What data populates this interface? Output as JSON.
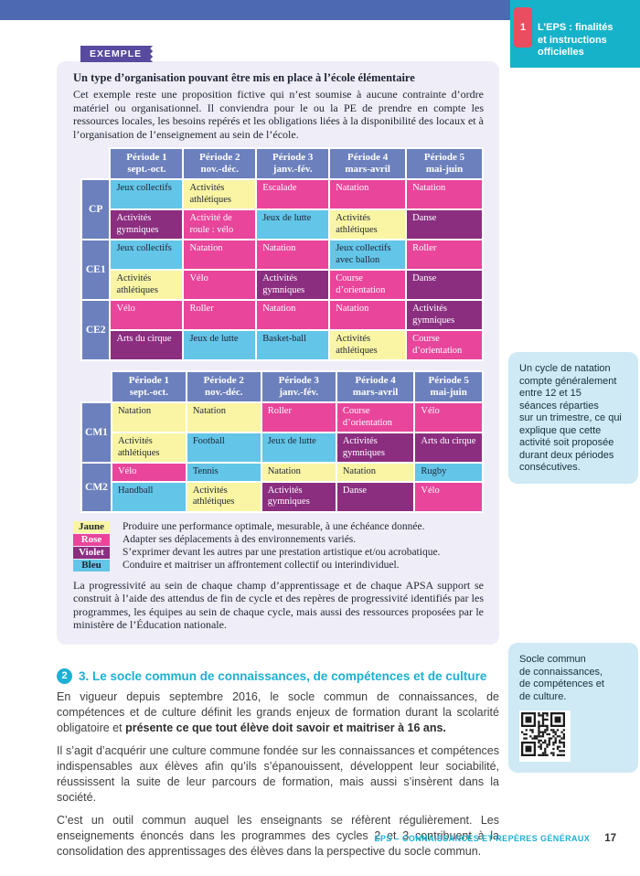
{
  "chapter": {
    "number": "1",
    "title": "L’EPS : finalités\net instructions\nofficielles"
  },
  "example": {
    "badge": "EXEMPLE",
    "heading": "Un type d’organisation pouvant être mis en place à l’école élémentaire",
    "intro": "Cet exemple reste une proposition fictive qui n’est soumise à aucune contrainte d’ordre matériel ou organisationnel. Il conviendra pour le ou la PE de prendre en compte les ressources locales, les besoins repérés et les obligations liées à la disponibilité des locaux et à l’organisation de l’enseignement au sein de l’école.",
    "period_headers": [
      {
        "name": "Période 1",
        "months": "sept.-oct."
      },
      {
        "name": "Période 2",
        "months": "nov.-déc."
      },
      {
        "name": "Période 3",
        "months": "janv.-fév."
      },
      {
        "name": "Période 4",
        "months": "mars-avril"
      },
      {
        "name": "Période 5",
        "months": "mai-juin"
      }
    ],
    "tables": [
      {
        "groups": [
          {
            "label": "CP",
            "rows": [
              [
                {
                  "t": "Jeux collectifs",
                  "c": "bleu"
                },
                {
                  "t": "Activités athlétiques",
                  "c": "jaune"
                },
                {
                  "t": "Escalade",
                  "c": "rose"
                },
                {
                  "t": "Natation",
                  "c": "rose"
                },
                {
                  "t": "Natation",
                  "c": "rose"
                }
              ],
              [
                {
                  "t": "Activités gymniques",
                  "c": "violet"
                },
                {
                  "t": "Activité de roule : vélo",
                  "c": "rose"
                },
                {
                  "t": "Jeux de lutte",
                  "c": "bleu"
                },
                {
                  "t": "Activités athlétiques",
                  "c": "jaune"
                },
                {
                  "t": "Danse",
                  "c": "violet"
                }
              ]
            ]
          },
          {
            "label": "CE1",
            "rows": [
              [
                {
                  "t": "Jeux collectifs",
                  "c": "bleu"
                },
                {
                  "t": "Natation",
                  "c": "rose"
                },
                {
                  "t": "Natation",
                  "c": "rose"
                },
                {
                  "t": "Jeux collectifs avec ballon",
                  "c": "bleu"
                },
                {
                  "t": "Roller",
                  "c": "rose"
                }
              ],
              [
                {
                  "t": "Activités athlétiques",
                  "c": "jaune"
                },
                {
                  "t": "Vélo",
                  "c": "rose"
                },
                {
                  "t": "Activités gymniques",
                  "c": "violet"
                },
                {
                  "t": "Course d’orientation",
                  "c": "rose"
                },
                {
                  "t": "Danse",
                  "c": "violet"
                }
              ]
            ]
          },
          {
            "label": "CE2",
            "rows": [
              [
                {
                  "t": "Vélo",
                  "c": "rose"
                },
                {
                  "t": "Roller",
                  "c": "rose"
                },
                {
                  "t": "Natation",
                  "c": "rose"
                },
                {
                  "t": "Natation",
                  "c": "rose"
                },
                {
                  "t": "Activités gymniques",
                  "c": "violet"
                }
              ],
              [
                {
                  "t": "Arts du cirque",
                  "c": "violet"
                },
                {
                  "t": "Jeux de lutte",
                  "c": "bleu"
                },
                {
                  "t": "Basket-ball",
                  "c": "bleu"
                },
                {
                  "t": "Activités athlétiques",
                  "c": "jaune"
                },
                {
                  "t": "Course d’orientation",
                  "c": "rose"
                }
              ]
            ]
          }
        ]
      },
      {
        "groups": [
          {
            "label": "CM1",
            "rows": [
              [
                {
                  "t": "Natation",
                  "c": "jaune"
                },
                {
                  "t": "Natation",
                  "c": "jaune"
                },
                {
                  "t": "Roller",
                  "c": "rose"
                },
                {
                  "t": "Course d’orientation",
                  "c": "rose"
                },
                {
                  "t": "Vélo",
                  "c": "rose"
                }
              ],
              [
                {
                  "t": "Activités athlétiques",
                  "c": "jaune"
                },
                {
                  "t": "Football",
                  "c": "bleu"
                },
                {
                  "t": "Jeux de lutte",
                  "c": "bleu"
                },
                {
                  "t": "Activités gymniques",
                  "c": "violet"
                },
                {
                  "t": "Arts du cirque",
                  "c": "violet"
                }
              ]
            ]
          },
          {
            "label": "CM2",
            "rows": [
              [
                {
                  "t": "Vélo",
                  "c": "rose"
                },
                {
                  "t": "Tennis",
                  "c": "bleu"
                },
                {
                  "t": "Natation",
                  "c": "jaune"
                },
                {
                  "t": "Natation",
                  "c": "jaune"
                },
                {
                  "t": "Rugby",
                  "c": "bleu"
                }
              ],
              [
                {
                  "t": "Handball",
                  "c": "bleu"
                },
                {
                  "t": "Activités athlétiques",
                  "c": "jaune"
                },
                {
                  "t": "Activités gymniques",
                  "c": "violet"
                },
                {
                  "t": "Danse",
                  "c": "violet"
                },
                {
                  "t": "Vélo",
                  "c": "rose"
                }
              ]
            ]
          }
        ]
      }
    ],
    "legend": [
      {
        "label": "Jaune",
        "c": "jaune",
        "text": "Produire une performance optimale, mesurable, à une échéance donnée."
      },
      {
        "label": "Rose",
        "c": "rose",
        "text": "Adapter ses déplacements à des environnements variés."
      },
      {
        "label": "Violet",
        "c": "violet",
        "text": "S’exprimer devant les autres par une prestation artistique et/ou acrobatique."
      },
      {
        "label": "Bleu",
        "c": "bleu",
        "text": "Conduire et maitriser un affrontement collectif ou interindividuel."
      }
    ],
    "outro": "La progressivité au sein de chaque champ d’apprentissage et de chaque APSA support se construit à l’aide des attendus de fin de cycle et des repères de progressivité identifiés par les programmes, les équipes au sein de chaque cycle, mais aussi des ressources proposées par le ministère de l’Éducation nationale."
  },
  "section": {
    "number": "2",
    "title": "3. Le socle commun de connaissances, de compétences et de culture",
    "paragraphs": [
      [
        {
          "t": "En vigueur depuis septembre 2016, le socle commun de connaissances, de compétences et de culture définit les grands enjeux de formation durant la scolarité obligatoire et ",
          "b": false
        },
        {
          "t": "présente ce que tout élève doit savoir et maitriser à 16 ans.",
          "b": true
        }
      ],
      [
        {
          "t": "Il s’agit d’acquérir une culture commune fondée sur les connaissances et compétences indispensables aux élèves afin qu’ils s’épanouissent, développent leur sociabilité, réussissent la suite de leur parcours de formation, mais aussi s’insèrent dans la société.",
          "b": false
        }
      ],
      [
        {
          "t": "C’est un outil commun auquel les enseignants se réfèrent régulièrement. Les enseignements énoncés dans les programmes des cycles 2 et 3 contribuent à la consolidation des apprentissages des élèves dans la perspective du socle commun.",
          "b": false
        }
      ]
    ]
  },
  "sidebar": {
    "note1": "Un cycle de natation\ncompte généralement\nentre 12 et 15\nséances réparties\nsur un trimestre, ce qui\nexplique que cette\nactivité soit proposée\ndurant deux périodes\nconsécutives.",
    "note2": "Socle commun\nde connaissances,\nde compétences et\nde culture."
  },
  "footer": {
    "text": "EPS – CONNAISSANCES ET REPÈRES GÉNÉRAUX",
    "page_number": "17"
  },
  "colors": {
    "jaune": "#f9f5a4",
    "rose": "#e8459b",
    "violet": "#8b2e80",
    "bleu": "#63c5e8",
    "slate": "#4d69b1",
    "teal": "#16b2ca",
    "accent_cyan": "#1cb0d4",
    "badge_purple": "#584a9e"
  }
}
